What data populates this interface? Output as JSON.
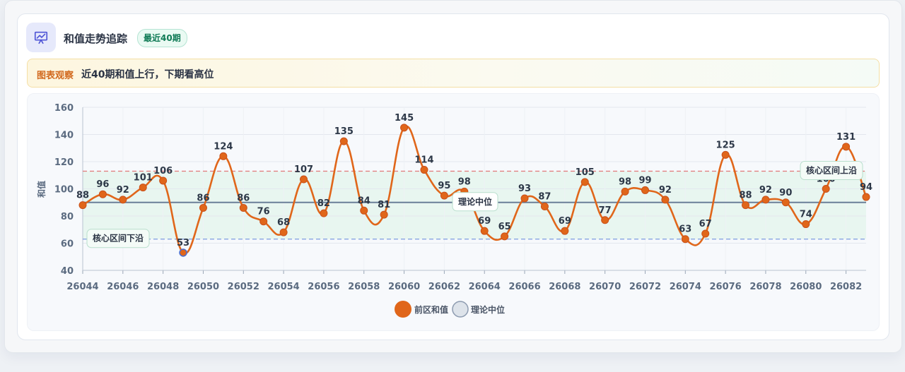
{
  "header": {
    "title": "和值走势追踪",
    "badge": "最近40期",
    "icon": "presentation-chart-icon"
  },
  "note": {
    "tag": "图表观察",
    "text": "近40期和值上行，下期看高位"
  },
  "colors": {
    "series": "#e0661a",
    "median_line": "#6a7f98",
    "upper_dash": "#e07a7a",
    "lower_dash": "#7d9be0",
    "band_fill": "#e3f4ec",
    "accent_badge": "#0f7a55"
  },
  "chart_data": {
    "type": "line",
    "title": "",
    "xlabel": "",
    "ylabel": "和值",
    "ylim": [
      40,
      160
    ],
    "yticks": [
      40,
      60,
      80,
      100,
      120,
      140,
      160
    ],
    "x": [
      26044,
      26045,
      26046,
      26047,
      26048,
      26049,
      26050,
      26051,
      26052,
      26053,
      26054,
      26055,
      26056,
      26057,
      26058,
      26059,
      26060,
      26061,
      26062,
      26063,
      26064,
      26065,
      26066,
      26067,
      26068,
      26069,
      26070,
      26071,
      26072,
      26073,
      26074,
      26075,
      26076,
      26077,
      26078,
      26079,
      26080,
      26081,
      26082,
      26083
    ],
    "xticks": [
      26044,
      26046,
      26048,
      26050,
      26052,
      26054,
      26056,
      26058,
      26060,
      26062,
      26064,
      26066,
      26068,
      26070,
      26072,
      26074,
      26076,
      26078,
      26080,
      26082
    ],
    "series": [
      {
        "name": "前区和值",
        "values": [
          88,
          96,
          92,
          101,
          106,
          53,
          86,
          124,
          86,
          76,
          68,
          107,
          82,
          135,
          84,
          81,
          145,
          114,
          95,
          98,
          69,
          65,
          93,
          87,
          69,
          105,
          77,
          98,
          99,
          92,
          63,
          67,
          125,
          88,
          92,
          90,
          74,
          100,
          131,
          94
        ]
      }
    ],
    "median": {
      "name": "理论中位",
      "value": 90
    },
    "band": {
      "lower": 63,
      "upper": 113,
      "lower_label": "核心区间下沿",
      "upper_label": "核心区间上沿"
    },
    "legend": [
      "前区和值",
      "理论中位"
    ],
    "legend_position": "bottom",
    "grid": true
  }
}
